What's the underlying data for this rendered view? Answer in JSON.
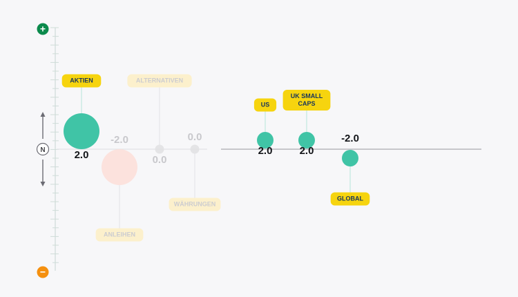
{
  "chart_data": {
    "type": "scatter",
    "scale_top_symbol": "+",
    "scale_bottom_symbol": "−",
    "neutral_symbol": "N",
    "scale_top_color": "#0b8a4c",
    "scale_bottom_color": "#f5900f",
    "ylim": [
      -4,
      4
    ],
    "points": [
      {
        "label": "AKTIEN",
        "value": 2.0,
        "value_text": "2.0",
        "faded": false,
        "color": "#40c4a6",
        "size": "large",
        "label_side": "above"
      },
      {
        "label": "ANLEIHEN",
        "value": -2.0,
        "value_text": "-2.0",
        "faded": true,
        "color": "#fde0da",
        "size": "large",
        "label_side": "below"
      },
      {
        "label": "ALTERNATIVEN",
        "value": 0.0,
        "value_text": "0.0",
        "faded": true,
        "color": "#e2e2e4",
        "size": "small",
        "label_side": "above"
      },
      {
        "label": "WÄHRUNGEN",
        "value": 0.0,
        "value_text": "0.0",
        "faded": true,
        "color": "#e2e2e4",
        "size": "small",
        "label_side": "below"
      },
      {
        "label": "US",
        "value": 2.0,
        "value_text": "2.0",
        "faded": false,
        "color": "#40c4a6",
        "size": "medium",
        "label_side": "above"
      },
      {
        "label": "UK SMALL CAPS",
        "label_lines": [
          "UK SMALL",
          "CAPS"
        ],
        "value": 2.0,
        "value_text": "2.0",
        "faded": false,
        "color": "#40c4a6",
        "size": "medium",
        "label_side": "above"
      },
      {
        "label": "GLOBAL",
        "value": -2.0,
        "value_text": "-2.0",
        "faded": false,
        "color": "#40c4a6",
        "size": "medium",
        "label_side": "below"
      }
    ]
  }
}
